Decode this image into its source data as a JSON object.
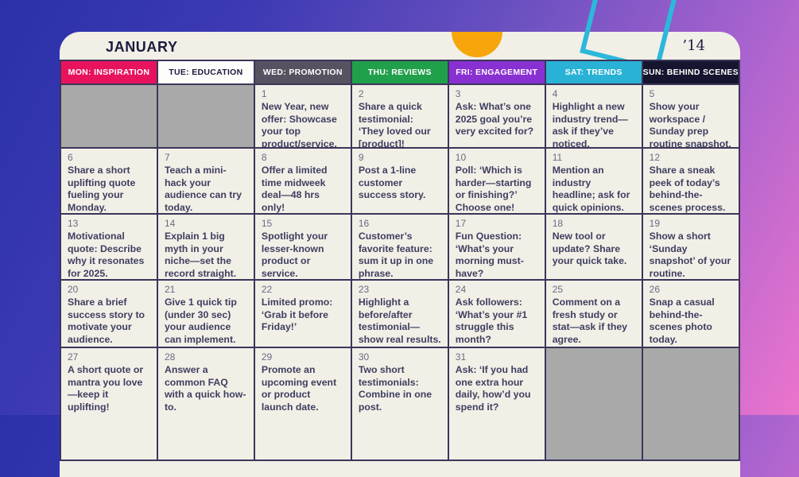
{
  "page": {
    "month_title": "JANUARY",
    "year_mark": "’14"
  },
  "colors": {
    "background_gradient": [
      "#2a31a9",
      "#6c51c1",
      "#ec74cd"
    ],
    "card_bg": "#f2efe7",
    "grid_line": "#3b3659",
    "empty_cell": "#a9a9a9",
    "cell_text": "#3f3e5f",
    "date_text": "#6b6a80",
    "accent_yellow_circle": "#f6a60b",
    "accent_teal_diamond": "#2bb8db"
  },
  "columns": [
    {
      "label": "MON: INSPIRATION",
      "bg": "#e8135f",
      "fg": "#ffffff"
    },
    {
      "label": "TUE: EDUCATION",
      "bg": "#fdfdfc",
      "fg": "#1b1b3c"
    },
    {
      "label": "WED: PROMOTION",
      "bg": "#575262",
      "fg": "#ffffff"
    },
    {
      "label": "THU: REVIEWS",
      "bg": "#21a04b",
      "fg": "#ffffff"
    },
    {
      "label": "FRI: ENGAGEMENT",
      "bg": "#8930d2",
      "fg": "#ffffff"
    },
    {
      "label": "SAT: TRENDS",
      "bg": "#29b2d5",
      "fg": "#ffffff"
    },
    {
      "label": "SUN: BEHIND SCENES",
      "bg": "#15152f",
      "fg": "#ffffff"
    }
  ],
  "cells": [
    {
      "day": "",
      "text": "",
      "empty": true
    },
    {
      "day": "",
      "text": "",
      "empty": true
    },
    {
      "day": "1",
      "text": "New Year, new offer: Showcase your top product/service."
    },
    {
      "day": "2",
      "text": "Share a quick testimonial: ‘They loved our [product]!"
    },
    {
      "day": "3",
      "text": "Ask: What’s one 2025 goal you’re very excited for?"
    },
    {
      "day": "4",
      "text": "Highlight a new industry trend—ask if they’ve noticed."
    },
    {
      "day": "5",
      "text": "Show your workspace / Sunday prep routine snapshot."
    },
    {
      "day": "6",
      "text": "Share a short uplifting quote fueling your Monday."
    },
    {
      "day": "7",
      "text": "Teach a mini-hack your audience can try today."
    },
    {
      "day": "8",
      "text": "Offer a limited time midweek deal—48 hrs only!"
    },
    {
      "day": "9",
      "text": "Post a 1-line customer success story."
    },
    {
      "day": "10",
      "text": "Poll: ‘Which is harder—starting or finishing?’ Choose one!"
    },
    {
      "day": "11",
      "text": "Mention an industry headline; ask for quick opinions."
    },
    {
      "day": "12",
      "text": "Share a sneak peek of today’s behind-the-scenes process."
    },
    {
      "day": "13",
      "text": "Motivational quote: Describe why it resonates for 2025."
    },
    {
      "day": "14",
      "text": "Explain 1 big myth in your niche—set the record straight."
    },
    {
      "day": "15",
      "text": "Spotlight your lesser-known product or service."
    },
    {
      "day": "16",
      "text": "Customer’s favorite feature: sum it up in one phrase."
    },
    {
      "day": "17",
      "text": "Fun Question: ‘What’s your morning must-have?"
    },
    {
      "day": "18",
      "text": "New tool or update? Share your quick take."
    },
    {
      "day": "19",
      "text": "Show a short ‘Sunday snapshot’ of your routine."
    },
    {
      "day": "20",
      "text": "Share a brief success story to motivate your audience."
    },
    {
      "day": "21",
      "text": "Give 1 quick tip (under 30 sec) your audience can implement."
    },
    {
      "day": "22",
      "text": "Limited promo: ‘Grab it before Friday!’"
    },
    {
      "day": "23",
      "text": "Highlight a before/after testimonial—show real results."
    },
    {
      "day": "24",
      "text": "Ask followers: ‘What’s your #1 struggle this month?"
    },
    {
      "day": "25",
      "text": "Comment on a fresh study or stat—ask if they agree."
    },
    {
      "day": "26",
      "text": "Snap a casual behind-the-scenes photo today."
    },
    {
      "day": "27",
      "text": "A short quote or mantra you love—keep it uplifting!"
    },
    {
      "day": "28",
      "text": "Answer a common FAQ with a quick how-to."
    },
    {
      "day": "29",
      "text": "Promote an upcoming event or product launch date."
    },
    {
      "day": "30",
      "text": "Two short testimonials: Combine in one post."
    },
    {
      "day": "31",
      "text": "Ask: ‘If you had one extra hour daily, how’d you spend it?"
    },
    {
      "day": "",
      "text": "",
      "empty": true
    },
    {
      "day": "",
      "text": "",
      "empty": true
    }
  ]
}
